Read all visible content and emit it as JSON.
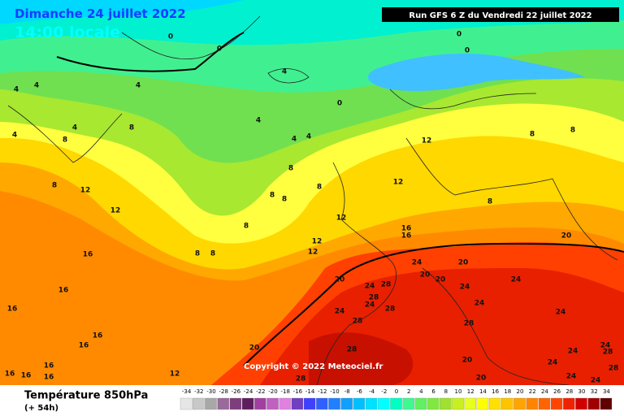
{
  "header": {
    "date": "Dimanche 24 juillet 2022",
    "time": "14:00 locale",
    "run": "Run GFS 6 Z du Vendredi 22 juillet 2022"
  },
  "copyright": "Copyright © 2022 Meteociel.fr",
  "footer": {
    "title": "Température 850hPa",
    "lead": "(+ 54h)"
  },
  "legend": {
    "values": [
      -34,
      -32,
      -30,
      -28,
      -26,
      -24,
      -22,
      -20,
      -18,
      -16,
      -14,
      -12,
      -10,
      -8,
      -6,
      -4,
      -2,
      0,
      2,
      4,
      6,
      8,
      10,
      12,
      14,
      16,
      18,
      20,
      22,
      24,
      26,
      28,
      30,
      32,
      34
    ],
    "colors": [
      "#e6e6e6",
      "#c8c8c8",
      "#a8a8a8",
      "#9a6a9a",
      "#7e3e7e",
      "#5e1e5e",
      "#a040a0",
      "#c060c0",
      "#e080e0",
      "#7040c0",
      "#4040ff",
      "#3060ff",
      "#2080ff",
      "#10a0ff",
      "#00c0ff",
      "#00e0ff",
      "#00ffff",
      "#00ffc0",
      "#40f890",
      "#60f060",
      "#80e840",
      "#a0e030",
      "#c8f020",
      "#e8ff20",
      "#ffff00",
      "#ffe000",
      "#ffc400",
      "#ffa400",
      "#ff8400",
      "#ff6400",
      "#ff4400",
      "#f02200",
      "#d00000",
      "#a00000",
      "#600000"
    ]
  },
  "contour_labels": [
    0,
    0,
    0,
    0,
    0,
    4,
    4,
    4,
    4,
    4,
    4,
    4,
    4,
    4,
    8,
    8,
    8,
    8,
    8,
    8,
    8,
    8,
    8,
    8,
    8,
    8,
    8,
    12,
    12,
    12,
    12,
    12,
    12,
    12,
    16,
    16,
    16,
    16,
    16,
    16,
    16,
    16,
    16,
    16,
    16,
    12,
    20,
    20,
    20,
    20,
    20,
    20,
    20,
    20,
    24,
    24,
    24,
    24,
    24,
    24,
    24,
    24,
    24,
    24,
    24,
    24,
    24,
    28,
    28,
    28,
    28,
    28,
    28,
    28,
    28,
    28
  ]
}
